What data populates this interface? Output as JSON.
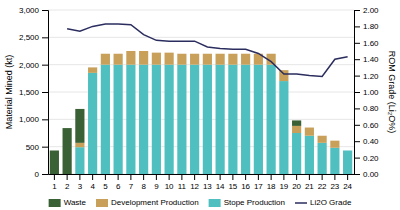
{
  "chart_data": {
    "type": "bar",
    "stacked": true,
    "categories": [
      "1",
      "2",
      "3",
      "4",
      "5",
      "6",
      "7",
      "8",
      "9",
      "10",
      "11",
      "12",
      "13",
      "14",
      "15",
      "16",
      "17",
      "18",
      "19",
      "20",
      "21",
      "22",
      "23",
      "24"
    ],
    "series": [
      {
        "name": "Stope Production",
        "color": "#4fbfbf",
        "values": [
          0,
          0,
          490,
          1850,
          2000,
          2000,
          2000,
          2000,
          2000,
          2000,
          2000,
          2000,
          2000,
          2000,
          2000,
          2000,
          2000,
          2000,
          1700,
          750,
          700,
          570,
          480,
          430
        ]
      },
      {
        "name": "Development Production",
        "color": "#c8a05a",
        "values": [
          0,
          0,
          80,
          100,
          200,
          200,
          250,
          250,
          220,
          220,
          200,
          200,
          200,
          200,
          200,
          200,
          200,
          200,
          200,
          130,
          150,
          130,
          130,
          0
        ]
      },
      {
        "name": "Waste",
        "color": "#3a6135",
        "values": [
          430,
          840,
          620,
          0,
          0,
          0,
          0,
          0,
          0,
          0,
          0,
          0,
          0,
          0,
          0,
          0,
          0,
          0,
          0,
          100,
          0,
          0,
          0,
          0
        ]
      },
      {
        "name": "Li2O Grade",
        "type": "line",
        "axis": "y2",
        "color": "#2b2d5e",
        "values": [
          null,
          1.77,
          1.74,
          1.8,
          1.83,
          1.83,
          1.82,
          1.7,
          1.63,
          1.62,
          1.62,
          1.62,
          1.55,
          1.53,
          1.52,
          1.52,
          1.47,
          1.37,
          1.22,
          1.22,
          1.2,
          1.19,
          1.4,
          1.43
        ]
      }
    ],
    "ylabel": "Material Mined (kt)",
    "y2label": "ROM Grade (Li₂O%)",
    "ylim": [
      0,
      3000
    ],
    "yticks": [
      0,
      500,
      {
        "value": 1000,
        "label": "1,000"
      },
      {
        "value": 1500,
        "label": "1,500"
      },
      {
        "value": 2000,
        "label": "2,000"
      },
      {
        "value": 2500,
        "label": "2,500"
      },
      {
        "value": 3000,
        "label": "3,000"
      }
    ],
    "y2lim": [
      0,
      2.0
    ],
    "y2ticks": [
      {
        "value": 0,
        "label": "0.00"
      },
      {
        "value": 0.2,
        "label": "0.20"
      },
      {
        "value": 0.4,
        "label": "0.40"
      },
      {
        "value": 0.6,
        "label": "0.60"
      },
      {
        "value": 0.8,
        "label": "0.80"
      },
      {
        "value": 1.0,
        "label": "1.00"
      },
      {
        "value": 1.2,
        "label": "1.20"
      },
      {
        "value": 1.4,
        "label": "1.40"
      },
      {
        "value": 1.6,
        "label": "1.60"
      },
      {
        "value": 1.8,
        "label": "1.80"
      },
      {
        "value": 2.0,
        "label": "2.00"
      }
    ],
    "grid": true,
    "legend": "bottom"
  }
}
